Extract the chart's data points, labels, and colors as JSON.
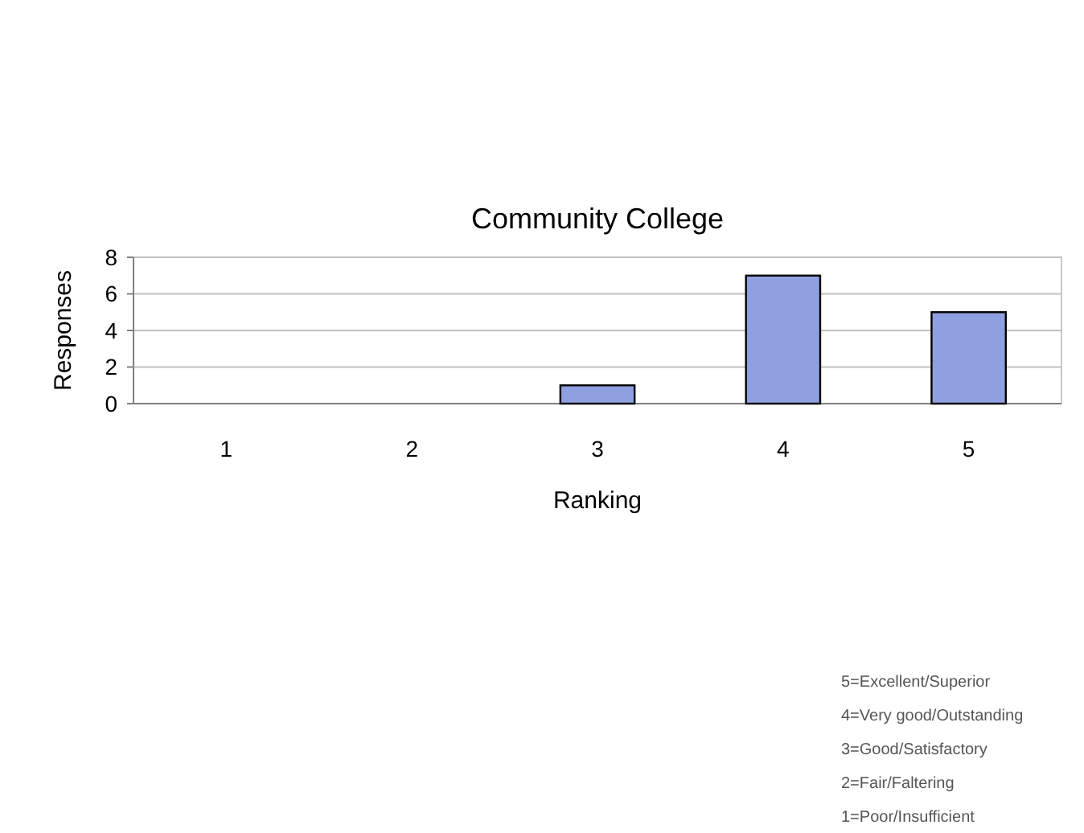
{
  "chart_data": {
    "type": "bar",
    "title": "Community College",
    "xlabel": "Ranking",
    "ylabel": "Responses",
    "categories": [
      "1",
      "2",
      "3",
      "4",
      "5"
    ],
    "values": [
      0,
      0,
      1,
      7,
      5
    ],
    "color": "#8fa0e0",
    "ylim": [
      0,
      8
    ],
    "yticks": [
      0,
      2,
      4,
      6,
      8
    ],
    "grid": "y",
    "annotations": [
      "5=Excellent/Superior",
      "4=Very good/Outstanding",
      "3=Good/Satisfactory",
      "2=Fair/Faltering",
      "1=Poor/Insufficient"
    ]
  }
}
